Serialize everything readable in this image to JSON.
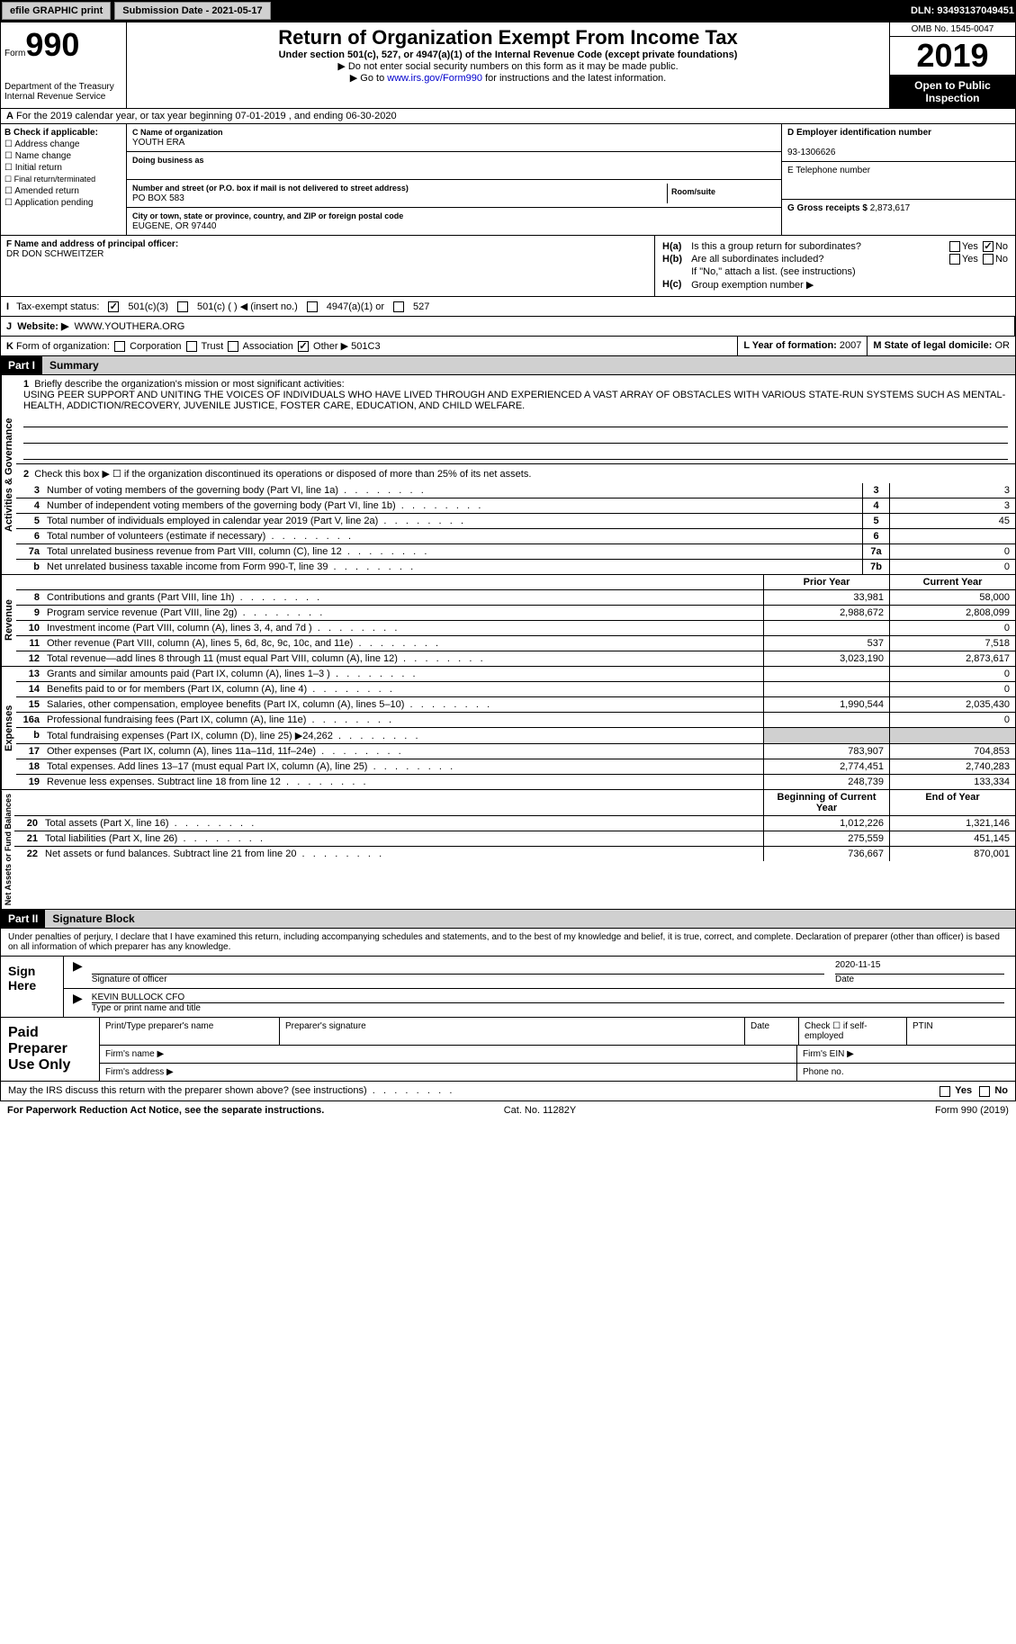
{
  "topbar": {
    "efile": "efile GRAPHIC print",
    "submission_label": "Submission Date - 2021-05-17",
    "dln_label": "DLN: 93493137049451"
  },
  "header": {
    "form_label": "Form",
    "form_number": "990",
    "dept": "Department of the Treasury\nInternal Revenue Service",
    "title": "Return of Organization Exempt From Income Tax",
    "subtitle": "Under section 501(c), 527, or 4947(a)(1) of the Internal Revenue Code (except private foundations)",
    "note1": "▶ Do not enter social security numbers on this form as it may be made public.",
    "note2_pre": "▶ Go to ",
    "note2_link": "www.irs.gov/Form990",
    "note2_post": " for instructions and the latest information.",
    "omb": "OMB No. 1545-0047",
    "year": "2019",
    "inspection": "Open to Public Inspection"
  },
  "line_a": "For the 2019 calendar year, or tax year beginning 07-01-2019   , and ending 06-30-2020",
  "box_b": {
    "label": "B Check if applicable:",
    "items": [
      "Address change",
      "Name change",
      "Initial return",
      "Final return/terminated",
      "Amended return",
      "Application pending"
    ]
  },
  "box_c": {
    "name_label": "C Name of organization",
    "name": "YOUTH ERA",
    "dba_label": "Doing business as",
    "street_label": "Number and street (or P.O. box if mail is not delivered to street address)",
    "room_label": "Room/suite",
    "street": "PO BOX 583",
    "city_label": "City or town, state or province, country, and ZIP or foreign postal code",
    "city": "EUGENE, OR  97440"
  },
  "box_d": {
    "ein_label": "D Employer identification number",
    "ein": "93-1306626",
    "phone_label": "E Telephone number",
    "receipts_label": "G Gross receipts $",
    "receipts": "2,873,617"
  },
  "box_f": {
    "label": "F Name and address of principal officer:",
    "name": "DR DON SCHWEITZER"
  },
  "box_h": {
    "ha_label": "Is this a group return for subordinates?",
    "hb_label": "Are all subordinates included?",
    "hb_note": "If \"No,\" attach a list. (see instructions)",
    "hc_label": "Group exemption number ▶",
    "yes": "Yes",
    "no": "No"
  },
  "row_i": {
    "label": "Tax-exempt status:",
    "opts": [
      "501(c)(3)",
      "501(c) (  ) ◀ (insert no.)",
      "4947(a)(1) or",
      "527"
    ]
  },
  "row_j": {
    "label": "Website: ▶",
    "value": "WWW.YOUTHERA.ORG"
  },
  "row_k": {
    "label": "Form of organization:",
    "opts": [
      "Corporation",
      "Trust",
      "Association",
      "Other ▶"
    ],
    "other_val": "501C3"
  },
  "row_l": {
    "label": "L Year of formation:",
    "value": "2007"
  },
  "row_m": {
    "label": "M State of legal domicile:",
    "value": "OR"
  },
  "part1": {
    "hdr": "Part I",
    "title": "Summary",
    "q1_label": "Briefly describe the organization's mission or most significant activities:",
    "q1_text": "USING PEER SUPPORT AND UNITING THE VOICES OF INDIVIDUALS WHO HAVE LIVED THROUGH AND EXPERIENCED A VAST ARRAY OF OBSTACLES WITH VARIOUS STATE-RUN SYSTEMS SUCH AS MENTAL-HEALTH, ADDICTION/RECOVERY, JUVENILE JUSTICE, FOSTER CARE, EDUCATION, AND CHILD WELFARE.",
    "q2": "Check this box ▶ ☐  if the organization discontinued its operations or disposed of more than 25% of its net assets.",
    "side_ag": "Activities & Governance",
    "side_rev": "Revenue",
    "side_exp": "Expenses",
    "side_na": "Net Assets or Fund Balances",
    "lines_gov": [
      {
        "n": "3",
        "t": "Number of voting members of the governing body (Part VI, line 1a)",
        "c": "3",
        "v": "3"
      },
      {
        "n": "4",
        "t": "Number of independent voting members of the governing body (Part VI, line 1b)",
        "c": "4",
        "v": "3"
      },
      {
        "n": "5",
        "t": "Total number of individuals employed in calendar year 2019 (Part V, line 2a)",
        "c": "5",
        "v": "45"
      },
      {
        "n": "6",
        "t": "Total number of volunteers (estimate if necessary)",
        "c": "6",
        "v": ""
      },
      {
        "n": "7a",
        "t": "Total unrelated business revenue from Part VIII, column (C), line 12",
        "c": "7a",
        "v": "0"
      },
      {
        "n": "b",
        "t": "Net unrelated business taxable income from Form 990-T, line 39",
        "c": "7b",
        "v": "0"
      }
    ],
    "hdr_prior": "Prior Year",
    "hdr_current": "Current Year",
    "lines_rev": [
      {
        "n": "8",
        "t": "Contributions and grants (Part VIII, line 1h)",
        "p": "33,981",
        "c": "58,000"
      },
      {
        "n": "9",
        "t": "Program service revenue (Part VIII, line 2g)",
        "p": "2,988,672",
        "c": "2,808,099"
      },
      {
        "n": "10",
        "t": "Investment income (Part VIII, column (A), lines 3, 4, and 7d )",
        "p": "",
        "c": "0"
      },
      {
        "n": "11",
        "t": "Other revenue (Part VIII, column (A), lines 5, 6d, 8c, 9c, 10c, and 11e)",
        "p": "537",
        "c": "7,518"
      },
      {
        "n": "12",
        "t": "Total revenue—add lines 8 through 11 (must equal Part VIII, column (A), line 12)",
        "p": "3,023,190",
        "c": "2,873,617"
      }
    ],
    "lines_exp": [
      {
        "n": "13",
        "t": "Grants and similar amounts paid (Part IX, column (A), lines 1–3 )",
        "p": "",
        "c": "0"
      },
      {
        "n": "14",
        "t": "Benefits paid to or for members (Part IX, column (A), line 4)",
        "p": "",
        "c": "0"
      },
      {
        "n": "15",
        "t": "Salaries, other compensation, employee benefits (Part IX, column (A), lines 5–10)",
        "p": "1,990,544",
        "c": "2,035,430"
      },
      {
        "n": "16a",
        "t": "Professional fundraising fees (Part IX, column (A), line 11e)",
        "p": "",
        "c": "0"
      },
      {
        "n": "b",
        "t": "Total fundraising expenses (Part IX, column (D), line 25) ▶24,262",
        "p": "grey",
        "c": "grey"
      },
      {
        "n": "17",
        "t": "Other expenses (Part IX, column (A), lines 11a–11d, 11f–24e)",
        "p": "783,907",
        "c": "704,853"
      },
      {
        "n": "18",
        "t": "Total expenses. Add lines 13–17 (must equal Part IX, column (A), line 25)",
        "p": "2,774,451",
        "c": "2,740,283"
      },
      {
        "n": "19",
        "t": "Revenue less expenses. Subtract line 18 from line 12",
        "p": "248,739",
        "c": "133,334"
      }
    ],
    "hdr_begin": "Beginning of Current Year",
    "hdr_end": "End of Year",
    "lines_na": [
      {
        "n": "20",
        "t": "Total assets (Part X, line 16)",
        "p": "1,012,226",
        "c": "1,321,146"
      },
      {
        "n": "21",
        "t": "Total liabilities (Part X, line 26)",
        "p": "275,559",
        "c": "451,145"
      },
      {
        "n": "22",
        "t": "Net assets or fund balances. Subtract line 21 from line 20",
        "p": "736,667",
        "c": "870,001"
      }
    ]
  },
  "part2": {
    "hdr": "Part II",
    "title": "Signature Block",
    "declaration": "Under penalties of perjury, I declare that I have examined this return, including accompanying schedules and statements, and to the best of my knowledge and belief, it is true, correct, and complete. Declaration of preparer (other than officer) is based on all information of which preparer has any knowledge.",
    "sign_here": "Sign Here",
    "sig_officer": "Signature of officer",
    "sig_date": "Date",
    "sig_date_val": "2020-11-15",
    "name_title": "KEVIN BULLOCK CFO",
    "name_title_label": "Type or print name and title",
    "paid_prep": "Paid Preparer Use Only",
    "prep_name": "Print/Type preparer's name",
    "prep_sig": "Preparer's signature",
    "prep_date": "Date",
    "prep_check": "Check ☐ if self-employed",
    "ptin": "PTIN",
    "firm_name": "Firm's name   ▶",
    "firm_ein": "Firm's EIN ▶",
    "firm_addr": "Firm's address ▶",
    "phone": "Phone no."
  },
  "footer": {
    "discuss": "May the IRS discuss this return with the preparer shown above? (see instructions)",
    "paperwork": "For Paperwork Reduction Act Notice, see the separate instructions.",
    "cat": "Cat. No. 11282Y",
    "form": "Form 990 (2019)"
  }
}
